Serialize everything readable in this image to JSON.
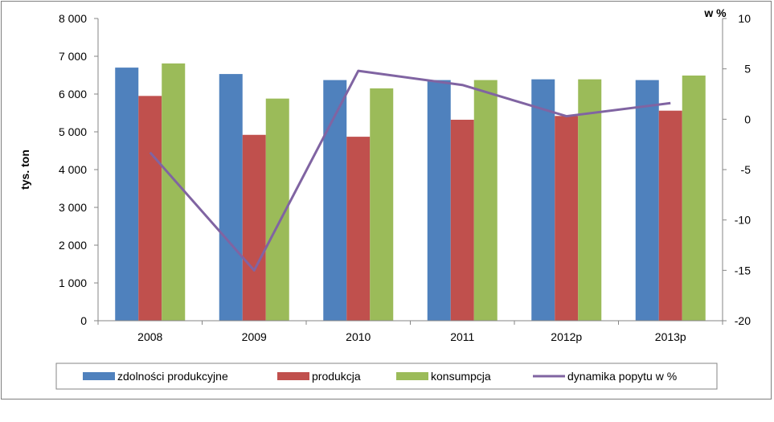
{
  "chart_data": {
    "type": "bar",
    "categories": [
      "2008",
      "2009",
      "2010",
      "2011",
      "2012p",
      "2013p"
    ],
    "series": [
      {
        "name": "zdolności produkcyjne",
        "kind": "bar",
        "axis": "left",
        "color": "#4f81bd",
        "values": [
          6700,
          6530,
          6370,
          6370,
          6390,
          6370
        ]
      },
      {
        "name": "produkcja",
        "kind": "bar",
        "axis": "left",
        "color": "#c0504d",
        "values": [
          5950,
          4920,
          4870,
          5320,
          5420,
          5560
        ]
      },
      {
        "name": "konsumpcja",
        "kind": "bar",
        "axis": "left",
        "color": "#9bbb59",
        "values": [
          6810,
          5880,
          6150,
          6370,
          6390,
          6490
        ]
      },
      {
        "name": "dynamika popytu w %",
        "kind": "line",
        "axis": "right",
        "color": "#8064a2",
        "values": [
          -3.3,
          -15.0,
          4.8,
          3.4,
          0.3,
          1.6
        ]
      }
    ],
    "ylabel": "tys. ton",
    "y2label": "w %",
    "ylim": [
      0,
      8000
    ],
    "y2lim": [
      -20,
      10
    ],
    "yticks": [
      "0",
      "1 000",
      "2 000",
      "3 000",
      "4 000",
      "5 000",
      "6 000",
      "7 000",
      "8 000"
    ],
    "y2ticks": [
      "-20",
      "-15",
      "-10",
      "-5",
      "0",
      "5",
      "10"
    ],
    "grid": false,
    "legend_position": "bottom"
  }
}
